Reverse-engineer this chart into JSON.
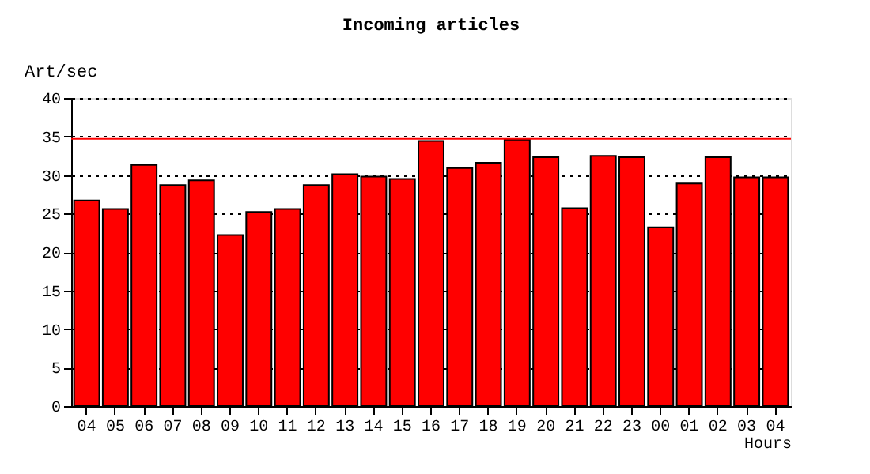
{
  "chart_data": {
    "type": "bar",
    "title": "Incoming articles",
    "xlabel": "Hours",
    "ylabel": "Art/sec",
    "categories": [
      "04",
      "05",
      "06",
      "07",
      "08",
      "09",
      "10",
      "11",
      "12",
      "13",
      "14",
      "15",
      "16",
      "17",
      "18",
      "19",
      "20",
      "21",
      "22",
      "23",
      "00",
      "01",
      "02",
      "03",
      "04"
    ],
    "values": [
      26.7,
      25.6,
      31.3,
      28.7,
      29.3,
      22.2,
      25.2,
      25.6,
      28.7,
      30.1,
      29.8,
      29.5,
      34.4,
      30.9,
      31.6,
      34.6,
      32.3,
      25.7,
      32.5,
      32.3,
      23.2,
      28.9,
      32.3,
      29.7,
      29.7
    ],
    "color": "#ff0000",
    "ylim": [
      0,
      40
    ],
    "yticks": [
      0,
      5,
      10,
      15,
      20,
      25,
      30,
      35,
      40
    ],
    "grid": "y",
    "ref_lines": [
      {
        "axis": "y",
        "value": 34.7,
        "color": "#ff0000"
      }
    ]
  }
}
